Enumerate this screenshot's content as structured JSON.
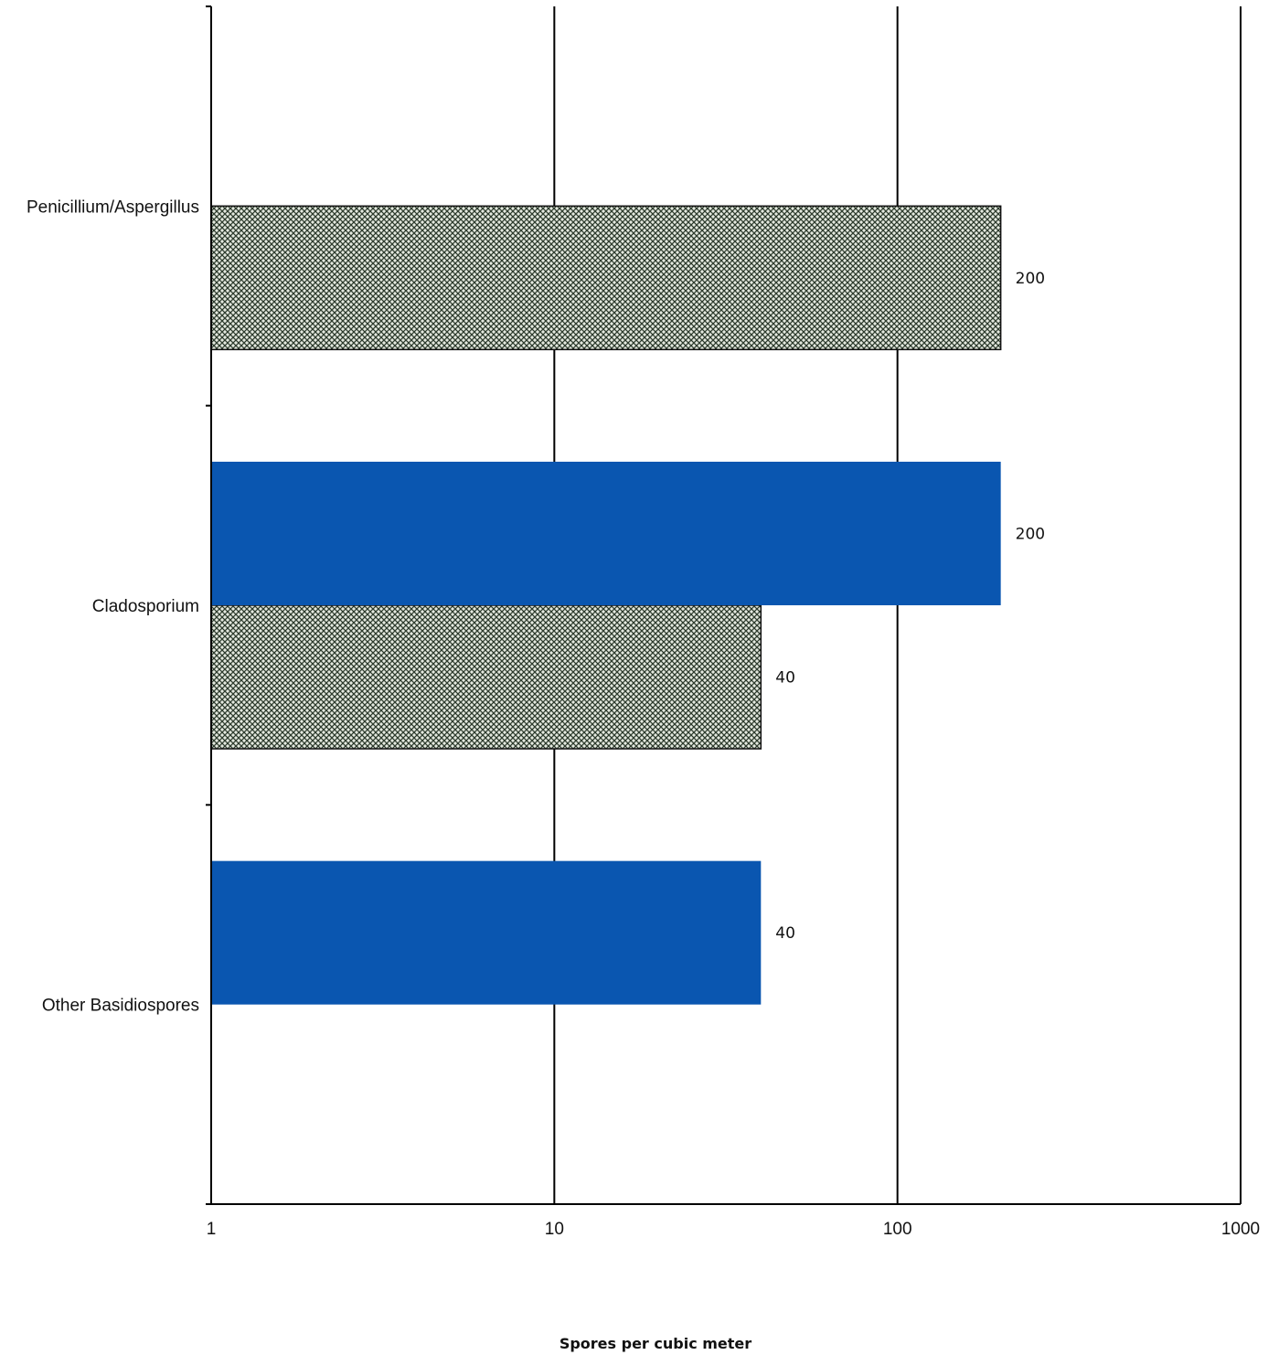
{
  "chart_data": {
    "type": "bar",
    "orientation": "horizontal",
    "categories": [
      "Penicillium/Aspergillus",
      "Cladosporium",
      "Other Basidiospores"
    ],
    "series": [
      {
        "values": [
          null,
          200,
          40
        ],
        "color": "#0a56b0",
        "pattern": "solid"
      },
      {
        "values": [
          200,
          40,
          null
        ],
        "color": "#9aa494",
        "pattern": "crosshatch"
      }
    ],
    "data_labels": [
      {
        "category": "Penicillium/Aspergillus",
        "series": 1,
        "text": "200"
      },
      {
        "category": "Cladosporium",
        "series": 0,
        "text": "200"
      },
      {
        "category": "Cladosporium",
        "series": 1,
        "text": "40"
      },
      {
        "category": "Other Basidiospores",
        "series": 0,
        "text": "40"
      }
    ],
    "xlabel": "Spores per cubic meter",
    "xscale": "log",
    "xlim": [
      1,
      1000
    ],
    "xticks": [
      "1",
      "10",
      "100",
      "1000"
    ],
    "grid": true
  }
}
